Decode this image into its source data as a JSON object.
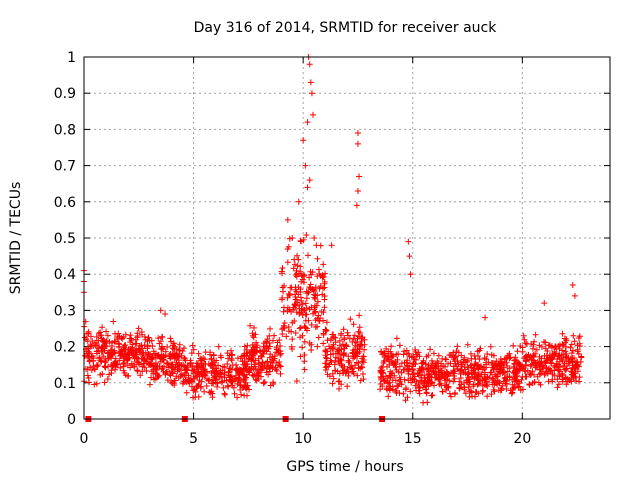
{
  "chart_data": {
    "type": "scatter",
    "title": "Day 316 of 2014, SRMTID for receiver auck",
    "xlabel": "GPS time / hours",
    "ylabel": "SRMTID / TECUs",
    "xlim": [
      0,
      24
    ],
    "ylim": [
      0,
      1
    ],
    "grid": true,
    "marker": "+",
    "color": "#ff0000",
    "x_ticks": [
      0,
      5,
      10,
      15,
      20
    ],
    "x_tick_labels": [
      "0",
      "5",
      "10",
      "15",
      "20"
    ],
    "y_ticks": [
      0,
      0.1,
      0.2,
      0.3,
      0.4,
      0.5,
      0.6,
      0.7,
      0.8,
      0.9,
      1
    ],
    "y_tick_labels": [
      "0",
      "0.1",
      "0.2",
      "0.3",
      "0.4",
      "0.5",
      "0.6",
      "0.7",
      "0.8",
      "0.9",
      "1"
    ],
    "zero_markers_x": [
      0.2,
      4.6,
      9.2,
      13.6
    ],
    "segments": [
      {
        "x_range": [
          0.0,
          3.0
        ],
        "base": 0.18,
        "spread": 0.08
      },
      {
        "x_range": [
          3.0,
          4.5
        ],
        "base": 0.16,
        "spread": 0.07
      },
      {
        "x_range": [
          4.5,
          7.5
        ],
        "base": 0.13,
        "spread": 0.07
      },
      {
        "x_range": [
          7.5,
          9.0
        ],
        "base": 0.17,
        "spread": 0.08
      },
      {
        "x_range": [
          9.0,
          11.0
        ],
        "base": 0.32,
        "spread": 0.18
      },
      {
        "x_range": [
          11.0,
          12.8
        ],
        "base": 0.18,
        "spread": 0.09
      },
      {
        "x_range": [
          13.5,
          16.0
        ],
        "base": 0.13,
        "spread": 0.08
      },
      {
        "x_range": [
          16.0,
          20.0
        ],
        "base": 0.13,
        "spread": 0.07
      },
      {
        "x_range": [
          20.0,
          22.7
        ],
        "base": 0.16,
        "spread": 0.08
      }
    ],
    "peaks": [
      {
        "x": 0.0,
        "y": 0.41
      },
      {
        "x": 0.0,
        "y": 0.38
      },
      {
        "x": 0.0,
        "y": 0.35
      },
      {
        "x": 3.5,
        "y": 0.3
      },
      {
        "x": 3.7,
        "y": 0.29
      },
      {
        "x": 9.3,
        "y": 0.55
      },
      {
        "x": 9.5,
        "y": 0.5
      },
      {
        "x": 9.8,
        "y": 0.6
      },
      {
        "x": 10.0,
        "y": 0.77
      },
      {
        "x": 10.1,
        "y": 0.7
      },
      {
        "x": 10.2,
        "y": 0.82
      },
      {
        "x": 10.25,
        "y": 1.0
      },
      {
        "x": 10.3,
        "y": 0.98
      },
      {
        "x": 10.35,
        "y": 0.93
      },
      {
        "x": 10.4,
        "y": 0.9
      },
      {
        "x": 10.45,
        "y": 0.84
      },
      {
        "x": 10.3,
        "y": 0.66
      },
      {
        "x": 10.2,
        "y": 0.64
      },
      {
        "x": 10.5,
        "y": 0.5
      },
      {
        "x": 10.6,
        "y": 0.48
      },
      {
        "x": 11.3,
        "y": 0.48
      },
      {
        "x": 12.5,
        "y": 0.79
      },
      {
        "x": 12.5,
        "y": 0.76
      },
      {
        "x": 12.55,
        "y": 0.67
      },
      {
        "x": 12.5,
        "y": 0.63
      },
      {
        "x": 12.45,
        "y": 0.59
      },
      {
        "x": 14.8,
        "y": 0.49
      },
      {
        "x": 14.85,
        "y": 0.45
      },
      {
        "x": 14.9,
        "y": 0.4
      },
      {
        "x": 22.3,
        "y": 0.37
      },
      {
        "x": 22.4,
        "y": 0.34
      },
      {
        "x": 21.0,
        "y": 0.32
      },
      {
        "x": 18.3,
        "y": 0.28
      }
    ]
  }
}
